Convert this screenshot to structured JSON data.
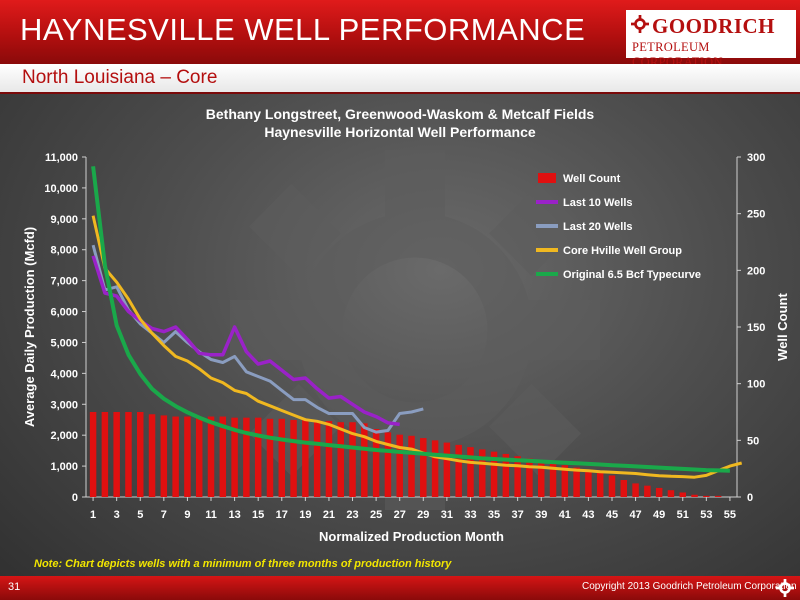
{
  "header": {
    "title": "HAYNESVILLE WELL PERFORMANCE",
    "logo_line1": "GOODRICH",
    "logo_line2": "PETROLEUM CORPORATION",
    "subtitle": "North Louisiana – Core"
  },
  "colors": {
    "header_red": "#c41414",
    "well_count": "#e01010",
    "last10": "#9a22c8",
    "last20": "#8a9dc0",
    "core": "#f0b820",
    "typecurve": "#1aa84a",
    "note": "#f2e600"
  },
  "chart_data": {
    "type": "bar",
    "title": "Bethany Longstreet, Greenwood-Waskom & Metcalf Fields",
    "subtitle": "Haynesville Horizontal Well Performance",
    "xlabel": "Normalized Production Month",
    "ylabel": "Average Daily Production (Mcfd)",
    "y2label": "Well Count",
    "ylim": [
      0,
      11000
    ],
    "y2lim": [
      0,
      300
    ],
    "yticks": [
      "0",
      "1,000",
      "2,000",
      "3,000",
      "4,000",
      "5,000",
      "6,000",
      "7,000",
      "8,000",
      "9,000",
      "10,000",
      "11,000"
    ],
    "y2ticks": [
      "0",
      "50",
      "100",
      "150",
      "200",
      "250",
      "300"
    ],
    "xticks": [
      "1",
      "3",
      "5",
      "7",
      "9",
      "11",
      "13",
      "15",
      "17",
      "19",
      "21",
      "23",
      "25",
      "27",
      "29",
      "31",
      "33",
      "35",
      "37",
      "39",
      "41",
      "43",
      "45",
      "47",
      "49",
      "51",
      "53",
      "55"
    ],
    "legend_position": "top-right",
    "series": [
      {
        "name": "Well Count",
        "kind": "bar",
        "axis": "right",
        "start_month": 1,
        "values": [
          75,
          75,
          75,
          75,
          75,
          73,
          72,
          71,
          71,
          71,
          71,
          71,
          70,
          70,
          70,
          69,
          69,
          68,
          68,
          67,
          67,
          66,
          66,
          65,
          60,
          57,
          55,
          54,
          52,
          50,
          48,
          46,
          44,
          42,
          40,
          38,
          36,
          34,
          32,
          30,
          28,
          26,
          24,
          22,
          19,
          15,
          12,
          10,
          8,
          6,
          4,
          2,
          1,
          1
        ]
      },
      {
        "name": "Last 10 Wells",
        "kind": "line",
        "axis": "left",
        "start_month": 1,
        "values": [
          7800,
          6600,
          6500,
          6000,
          5700,
          5450,
          5350,
          5500,
          5100,
          4650,
          4600,
          4600,
          5500,
          4700,
          4300,
          4400,
          4100,
          3800,
          3850,
          3500,
          3200,
          3250,
          3000,
          2750,
          2600,
          2400,
          2350
        ]
      },
      {
        "name": "Last 20 Wells",
        "kind": "line",
        "axis": "left",
        "start_month": 1,
        "values": [
          8150,
          6700,
          6800,
          6050,
          5600,
          5300,
          5000,
          5350,
          5000,
          4700,
          4450,
          4350,
          4550,
          4050,
          3900,
          3750,
          3450,
          3150,
          3150,
          2900,
          2700,
          2700,
          2700,
          2250,
          2100,
          2150,
          2700,
          2750,
          2850
        ]
      },
      {
        "name": "Core Hville Well Group",
        "kind": "line",
        "axis": "left",
        "start_month": 1,
        "values": [
          9100,
          7400,
          6950,
          6400,
          5750,
          5300,
          4900,
          4550,
          4400,
          4150,
          3850,
          3700,
          3450,
          3350,
          3100,
          2950,
          2800,
          2650,
          2500,
          2450,
          2350,
          2200,
          2050,
          1950,
          1800,
          1700,
          1600,
          1550,
          1420,
          1300,
          1240,
          1170,
          1120,
          1090,
          1060,
          1030,
          1010,
          980,
          960,
          930,
          900,
          870,
          850,
          820,
          800,
          780,
          760,
          720,
          690,
          670,
          660,
          640,
          700,
          850,
          1000,
          1100
        ]
      },
      {
        "name": "Original 6.5 Bcf Typecurve",
        "kind": "line",
        "axis": "left",
        "start_month": 1,
        "values": [
          10700,
          7500,
          5550,
          4600,
          3980,
          3500,
          3180,
          2940,
          2740,
          2570,
          2420,
          2290,
          2170,
          2070,
          1990,
          1920,
          1860,
          1810,
          1760,
          1720,
          1680,
          1640,
          1600,
          1560,
          1520,
          1490,
          1460,
          1430,
          1400,
          1370,
          1340,
          1310,
          1280,
          1250,
          1230,
          1210,
          1190,
          1170,
          1150,
          1130,
          1110,
          1090,
          1070,
          1050,
          1030,
          1010,
          990,
          970,
          950,
          930,
          910,
          890,
          870,
          860,
          850
        ]
      }
    ]
  },
  "note": "Note:  Chart depicts wells with a minimum of three months of production history",
  "footer": {
    "page": "31",
    "copyright": "Copyright 2013 Goodrich Petroleum Corporation"
  }
}
